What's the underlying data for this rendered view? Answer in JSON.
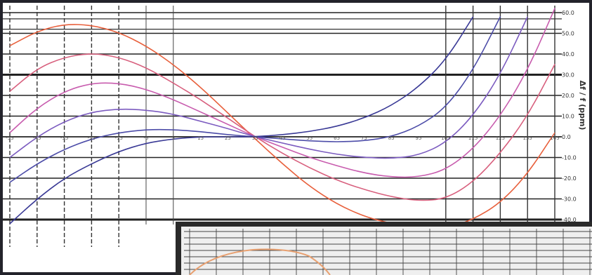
{
  "colors": {
    "frame": "#23232b",
    "paper": "#ffffff",
    "grid": "#222222",
    "inset_panel": "#efefef",
    "curve_palette": [
      "#e8603c",
      "#d8607e",
      "#c85cae",
      "#7c5cc0",
      "#4c4ca8",
      "#3a3a96"
    ]
  },
  "chart_data": [
    {
      "type": "line",
      "title": "",
      "xlabel": "",
      "ylabel": "Δf / f (ppm)",
      "x_tick_labels": [
        "-55",
        "-45",
        "-35",
        "-25",
        "-15",
        "-5",
        "5",
        "15",
        "25",
        "35",
        "45",
        "55",
        "65",
        "75",
        "85",
        "95",
        "105",
        "115",
        "125",
        "135",
        "145"
      ],
      "y_tick_labels": [
        "60.0",
        "50.0",
        "40.0",
        "30.0",
        "20.0",
        "10.0",
        "0.0",
        "-10.0",
        "-20.0",
        "-30.0",
        "-40.0"
      ],
      "xlim": [
        -55,
        145
      ],
      "ylim": [
        -45,
        62
      ],
      "grid": true,
      "legend": "none",
      "series": [
        {
          "points": [
            [
              -55,
              44
            ],
            [
              -45,
              51
            ],
            [
              -35,
              54.5
            ],
            [
              -25,
              54
            ],
            [
              -15,
              50.5
            ],
            [
              -5,
              44
            ],
            [
              5,
              35
            ],
            [
              15,
              24
            ],
            [
              25,
              11.5
            ],
            [
              35,
              -1
            ],
            [
              45,
              -13
            ],
            [
              55,
              -24
            ],
            [
              65,
              -32.5
            ],
            [
              75,
              -38.5
            ],
            [
              85,
              -42
            ],
            [
              95,
              -44
            ],
            [
              105,
              -44.5
            ],
            [
              115,
              -40
            ],
            [
              125,
              -32
            ],
            [
              135,
              -18
            ],
            [
              145,
              2
            ]
          ]
        },
        {
          "points": [
            [
              -55,
              22
            ],
            [
              -45,
              33
            ],
            [
              -35,
              38.5
            ],
            [
              -25,
              40.5
            ],
            [
              -15,
              38.5
            ],
            [
              -5,
              33.5
            ],
            [
              5,
              26
            ],
            [
              15,
              18
            ],
            [
              25,
              9
            ],
            [
              35,
              0
            ],
            [
              45,
              -8
            ],
            [
              55,
              -15
            ],
            [
              65,
              -21
            ],
            [
              75,
              -25.5
            ],
            [
              85,
              -29
            ],
            [
              95,
              -31
            ],
            [
              105,
              -30
            ],
            [
              115,
              -22
            ],
            [
              125,
              -8
            ],
            [
              135,
              10
            ],
            [
              145,
              35
            ]
          ]
        },
        {
          "points": [
            [
              -55,
              2
            ],
            [
              -45,
              14
            ],
            [
              -35,
              22
            ],
            [
              -25,
              26
            ],
            [
              -15,
              26
            ],
            [
              -5,
              23
            ],
            [
              5,
              18
            ],
            [
              15,
              12
            ],
            [
              25,
              6
            ],
            [
              35,
              0
            ],
            [
              45,
              -5
            ],
            [
              55,
              -10
            ],
            [
              65,
              -14
            ],
            [
              75,
              -17.5
            ],
            [
              85,
              -19.5
            ],
            [
              95,
              -19.5
            ],
            [
              105,
              -16
            ],
            [
              115,
              -6
            ],
            [
              125,
              10
            ],
            [
              135,
              32
            ],
            [
              145,
              62
            ]
          ]
        },
        {
          "points": [
            [
              -55,
              -10
            ],
            [
              -45,
              0
            ],
            [
              -35,
              7.5
            ],
            [
              -25,
              12
            ],
            [
              -15,
              13.5
            ],
            [
              -5,
              13
            ],
            [
              5,
              11
            ],
            [
              15,
              7.5
            ],
            [
              25,
              4
            ],
            [
              35,
              0
            ],
            [
              45,
              -3
            ],
            [
              55,
              -6
            ],
            [
              65,
              -8.5
            ],
            [
              75,
              -10
            ],
            [
              85,
              -10.5
            ],
            [
              95,
              -9
            ],
            [
              105,
              -3
            ],
            [
              115,
              10
            ],
            [
              125,
              30
            ],
            [
              135,
              58
            ]
          ]
        },
        {
          "points": [
            [
              -55,
              -22
            ],
            [
              -45,
              -13
            ],
            [
              -35,
              -6
            ],
            [
              -25,
              -1
            ],
            [
              -15,
              2
            ],
            [
              -5,
              3.5
            ],
            [
              5,
              3.5
            ],
            [
              15,
              2.5
            ],
            [
              25,
              1
            ],
            [
              35,
              0
            ],
            [
              45,
              -1
            ],
            [
              55,
              -2
            ],
            [
              65,
              -2.5
            ],
            [
              75,
              -2
            ],
            [
              85,
              0
            ],
            [
              95,
              5
            ],
            [
              105,
              14
            ],
            [
              115,
              32
            ],
            [
              125,
              58
            ]
          ]
        },
        {
          "points": [
            [
              -55,
              -42
            ],
            [
              -45,
              -30
            ],
            [
              -35,
              -20
            ],
            [
              -25,
              -13
            ],
            [
              -15,
              -7
            ],
            [
              -5,
              -3
            ],
            [
              5,
              -1
            ],
            [
              15,
              0
            ],
            [
              25,
              0
            ],
            [
              35,
              0
            ],
            [
              45,
              1
            ],
            [
              55,
              2.5
            ],
            [
              65,
              5
            ],
            [
              75,
              9
            ],
            [
              85,
              15
            ],
            [
              95,
              24
            ],
            [
              105,
              37
            ],
            [
              115,
              58
            ]
          ]
        }
      ]
    },
    {
      "type": "line",
      "title": "",
      "grid": true,
      "series": []
    }
  ]
}
